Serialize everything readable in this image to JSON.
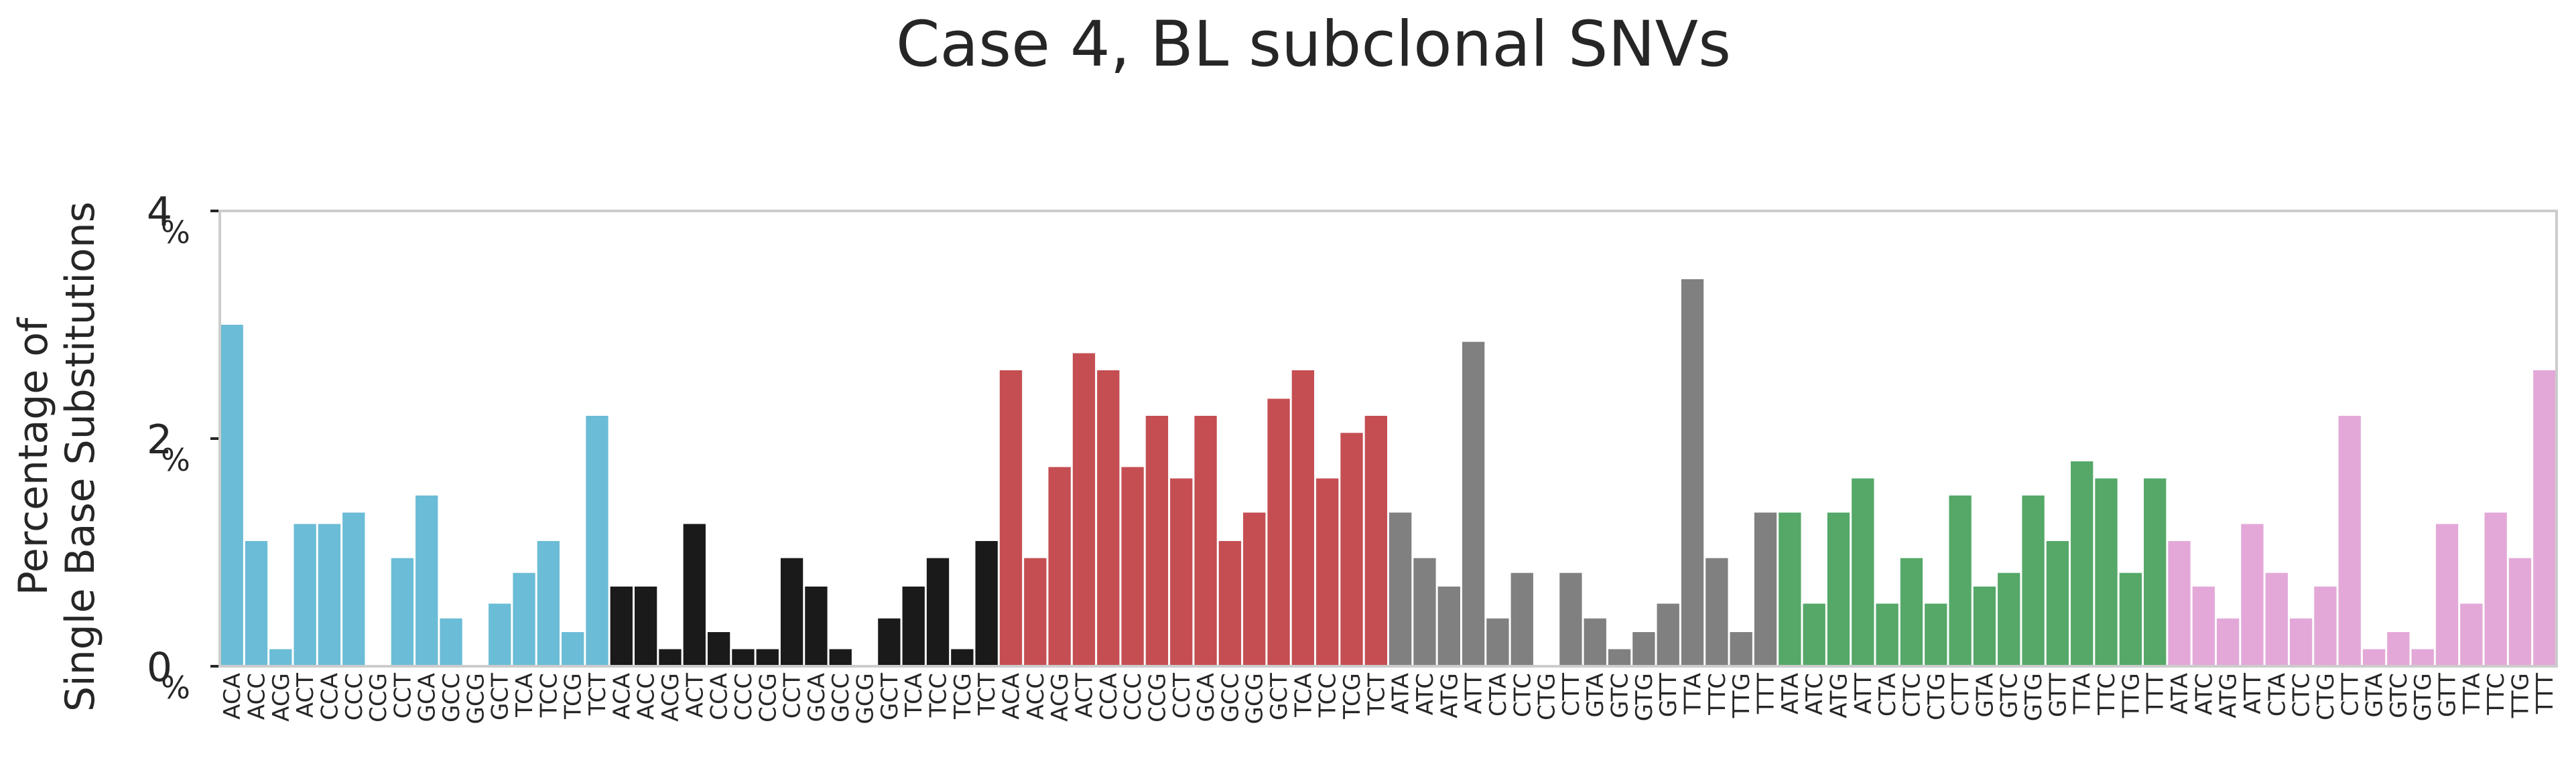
{
  "chart_data": {
    "type": "bar",
    "title": "Case 4, BL subclonal SNVs",
    "ylabel_lines": [
      "Percentage of",
      "Single Base Substitutions"
    ],
    "ylim": [
      0,
      4
    ],
    "yticks": [
      0,
      2,
      4
    ],
    "ytick_suffix": "%",
    "grid": false,
    "legend": "none",
    "groups": [
      {
        "color": "#6bbcd6",
        "contexts": [
          "ACA",
          "ACC",
          "ACG",
          "ACT",
          "CCA",
          "CCC",
          "CCG",
          "CCT",
          "GCA",
          "GCC",
          "GCG",
          "GCT",
          "TCA",
          "TCC",
          "TCG",
          "TCT"
        ],
        "values": [
          3.0,
          1.1,
          0.15,
          1.25,
          1.25,
          1.35,
          0,
          0.95,
          1.5,
          0.42,
          0,
          0.55,
          0.82,
          1.1,
          0.3,
          2.2
        ]
      },
      {
        "color": "#1a1a1a",
        "contexts": [
          "ACA",
          "ACC",
          "ACG",
          "ACT",
          "CCA",
          "CCC",
          "CCG",
          "CCT",
          "GCA",
          "GCC",
          "GCG",
          "GCT",
          "TCA",
          "TCC",
          "TCG",
          "TCT"
        ],
        "values": [
          0.7,
          0.7,
          0.15,
          1.25,
          0.3,
          0.15,
          0.15,
          0.95,
          0.7,
          0.15,
          0,
          0.42,
          0.7,
          0.95,
          0.15,
          1.1
        ]
      },
      {
        "color": "#c44e52",
        "contexts": [
          "ACA",
          "ACC",
          "ACG",
          "ACT",
          "CCA",
          "CCC",
          "CCG",
          "CCT",
          "GCA",
          "GCC",
          "GCG",
          "GCT",
          "TCA",
          "TCC",
          "TCG",
          "TCT"
        ],
        "values": [
          2.6,
          0.95,
          1.75,
          2.75,
          2.6,
          1.75,
          2.2,
          1.65,
          2.2,
          1.1,
          1.35,
          2.35,
          2.6,
          1.65,
          2.05,
          2.2
        ]
      },
      {
        "color": "#808080",
        "contexts": [
          "ATA",
          "ATC",
          "ATG",
          "ATT",
          "CTA",
          "CTC",
          "CTG",
          "CTT",
          "GTA",
          "GTC",
          "GTG",
          "GTT",
          "TTA",
          "TTC",
          "TTG",
          "TTT"
        ],
        "values": [
          1.35,
          0.95,
          0.7,
          2.85,
          0.42,
          0.82,
          0,
          0.82,
          0.42,
          0.15,
          0.3,
          0.55,
          3.4,
          0.95,
          0.3,
          1.35
        ]
      },
      {
        "color": "#55a868",
        "contexts": [
          "ATA",
          "ATC",
          "ATG",
          "ATT",
          "CTA",
          "CTC",
          "CTG",
          "CTT",
          "GTA",
          "GTC",
          "GTG",
          "GTT",
          "TTA",
          "TTC",
          "TTG",
          "TTT"
        ],
        "values": [
          1.35,
          0.55,
          1.35,
          1.65,
          0.55,
          0.95,
          0.55,
          1.5,
          0.7,
          0.82,
          1.5,
          1.1,
          1.8,
          1.65,
          0.82,
          1.65
        ]
      },
      {
        "color": "#e3a8d8",
        "contexts": [
          "ATA",
          "ATC",
          "ATG",
          "ATT",
          "CTA",
          "CTC",
          "CTG",
          "CTT",
          "GTA",
          "GTC",
          "GTG",
          "GTT",
          "TTA",
          "TTC",
          "TTG",
          "TTT"
        ],
        "values": [
          1.1,
          0.7,
          0.42,
          1.25,
          0.82,
          0.42,
          0.7,
          2.2,
          0.15,
          0.3,
          0.15,
          1.25,
          0.55,
          1.35,
          0.95,
          2.6
        ]
      }
    ]
  }
}
